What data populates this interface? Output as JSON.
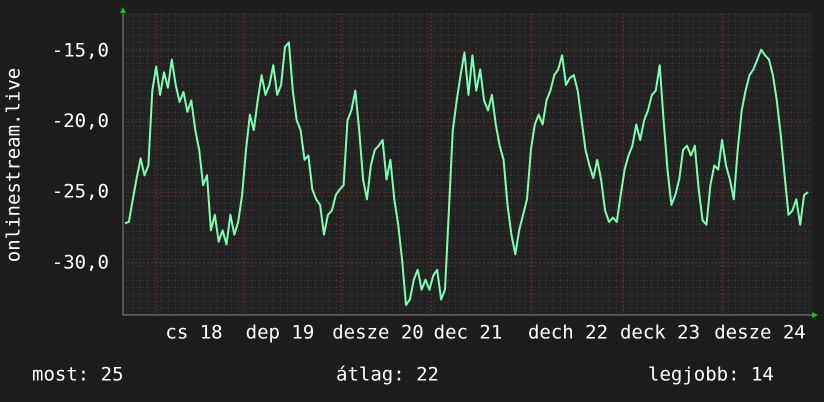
{
  "chart_data": {
    "type": "line",
    "y_label": "onlinestream.live",
    "color": "#7fffb4",
    "ylim": [
      -33.7,
      -12.3
    ],
    "yticks": [
      {
        "value": -15,
        "label": "-15,0"
      },
      {
        "value": -20,
        "label": "-20,0"
      },
      {
        "value": -25,
        "label": "-25,0"
      },
      {
        "value": -30,
        "label": "-30,0"
      }
    ],
    "x_labels": [
      "cs 18",
      "dep 19",
      "desze 20",
      "dec 21",
      "dech 22",
      "deck 23",
      "desze 24"
    ],
    "values": [
      -27.2,
      -27.1,
      -25.5,
      -24.0,
      -22.6,
      -23.8,
      -23.1,
      -17.8,
      -16.1,
      -18.1,
      -16.5,
      -17.6,
      -15.6,
      -17.4,
      -18.6,
      -17.9,
      -19.3,
      -18.5,
      -20.6,
      -22.0,
      -24.5,
      -23.8,
      -27.7,
      -26.6,
      -28.5,
      -27.7,
      -28.7,
      -26.6,
      -28.0,
      -27.1,
      -25.2,
      -22.0,
      -19.5,
      -20.6,
      -18.5,
      -16.7,
      -18.1,
      -17.4,
      -16.0,
      -18.1,
      -17.4,
      -14.7,
      -14.4,
      -17.8,
      -19.9,
      -20.6,
      -22.7,
      -22.4,
      -24.8,
      -25.5,
      -25.9,
      -28.0,
      -26.6,
      -26.3,
      -25.2,
      -24.8,
      -24.5,
      -19.9,
      -19.2,
      -17.8,
      -20.6,
      -24.1,
      -25.5,
      -23.1,
      -22.0,
      -21.7,
      -21.3,
      -24.1,
      -22.7,
      -25.5,
      -27.3,
      -29.8,
      -33.0,
      -32.6,
      -31.2,
      -30.5,
      -31.9,
      -31.2,
      -31.9,
      -30.9,
      -30.5,
      -32.6,
      -31.9,
      -26.3,
      -20.6,
      -18.5,
      -16.7,
      -15.1,
      -18.1,
      -15.3,
      -17.8,
      -16.3,
      -18.5,
      -19.2,
      -18.1,
      -20.2,
      -21.7,
      -22.7,
      -25.9,
      -28.0,
      -29.4,
      -27.7,
      -26.6,
      -25.5,
      -22.0,
      -20.2,
      -19.5,
      -20.2,
      -18.5,
      -17.8,
      -16.7,
      -16.3,
      -15.3,
      -17.4,
      -16.9,
      -16.7,
      -17.8,
      -19.9,
      -22.0,
      -23.1,
      -24.0,
      -22.7,
      -24.1,
      -26.3,
      -27.1,
      -26.8,
      -27.1,
      -25.2,
      -23.4,
      -22.4,
      -21.7,
      -20.2,
      -21.3,
      -19.9,
      -19.2,
      -18.1,
      -17.8,
      -16.0,
      -19.9,
      -23.4,
      -25.9,
      -25.2,
      -24.1,
      -22.0,
      -21.7,
      -22.4,
      -21.7,
      -24.8,
      -27.0,
      -27.3,
      -24.5,
      -23.1,
      -23.4,
      -21.3,
      -23.1,
      -24.1,
      -25.5,
      -22.0,
      -19.2,
      -17.8,
      -16.7,
      -16.3,
      -15.6,
      -14.9,
      -15.3,
      -15.6,
      -16.7,
      -18.5,
      -20.9,
      -23.8,
      -26.6,
      -26.3,
      -25.5,
      -27.3,
      -25.2,
      -25.0
    ]
  },
  "footer": {
    "current": "most: 25",
    "average": "átlag: 22",
    "best": "legjobb: 14"
  }
}
